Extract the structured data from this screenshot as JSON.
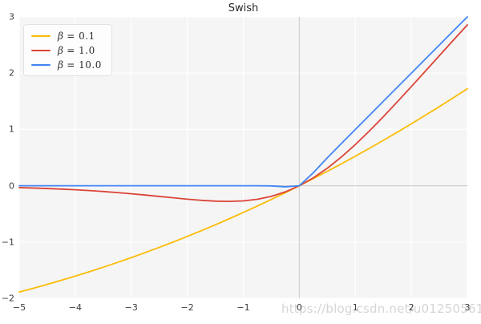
{
  "title": "Swish",
  "watermark": "https://blog.csdn.net/u012505613",
  "colors": {
    "plot_background": "#f5f5f6",
    "grid": "#ffffff",
    "zero_lines": "#cfcfcf",
    "tick_text": "#3d3d3d",
    "title_text": "#262626",
    "watermark_text": "#d5d5d5"
  },
  "chart_data": {
    "type": "line",
    "title": "Swish",
    "xlabel": "",
    "ylabel": "",
    "xlim": [
      -5,
      3
    ],
    "ylim": [
      -2,
      3
    ],
    "xticks": [
      -5,
      -4,
      -3,
      -2,
      -1,
      0,
      1,
      2,
      3
    ],
    "yticks": [
      -2,
      -1,
      0,
      1,
      2,
      3
    ],
    "xtick_labels": [
      "−5",
      "−4",
      "−3",
      "−2",
      "−1",
      "0",
      "1",
      "2",
      "3"
    ],
    "ytick_labels": [
      "−2",
      "−1",
      "0",
      "1",
      "2",
      "3"
    ],
    "grid": true,
    "zero_lines": true,
    "legend_position": "upper left",
    "x": [
      -5,
      -4.75,
      -4.5,
      -4.25,
      -4,
      -3.75,
      -3.5,
      -3.25,
      -3,
      -2.75,
      -2.5,
      -2.25,
      -2,
      -1.75,
      -1.5,
      -1.25,
      -1,
      -0.75,
      -0.5,
      -0.25,
      0,
      0.25,
      0.5,
      0.75,
      1,
      1.25,
      1.5,
      1.75,
      2,
      2.25,
      2.5,
      2.75,
      3
    ],
    "series": [
      {
        "name": "β = 0.1",
        "beta": 0.1,
        "color": "#FBBC05",
        "values": [
          -1.8877,
          -1.8213,
          -1.7521,
          -1.6801,
          -1.6052,
          -1.5275,
          -1.4468,
          -1.3632,
          -1.2767,
          -1.1871,
          -1.0946,
          -0.999,
          -0.9003,
          -0.7986,
          -0.6939,
          -0.586,
          -0.475,
          -0.3609,
          -0.2437,
          -0.1234,
          0,
          0.1266,
          0.2562,
          0.3891,
          0.525,
          0.664,
          0.8061,
          0.9514,
          1.0997,
          1.251,
          1.4054,
          1.5629,
          1.7233
        ]
      },
      {
        "name": "β = 1.0",
        "beta": 1.0,
        "color": "#DB4437",
        "values": [
          -0.0336,
          -0.0408,
          -0.0494,
          -0.0597,
          -0.0719,
          -0.0862,
          -0.1026,
          -0.1213,
          -0.1423,
          -0.1652,
          -0.1897,
          -0.2145,
          -0.2384,
          -0.2591,
          -0.2736,
          -0.2784,
          -0.2689,
          -0.2406,
          -0.1888,
          -0.1095,
          0,
          0.1405,
          0.3112,
          0.5094,
          0.7311,
          0.9716,
          1.2264,
          1.4909,
          1.7616,
          2.0355,
          2.3104,
          2.5848,
          2.8577
        ]
      },
      {
        "name": "β = 10.0",
        "beta": 10.0,
        "color": "#4285F4",
        "values": [
          0,
          0,
          0,
          0,
          0,
          0,
          0,
          0,
          0,
          0,
          0,
          0,
          0,
          0,
          0,
          0,
          0,
          -0.0004,
          -0.0033,
          -0.019,
          0,
          0.231,
          0.4967,
          0.7496,
          1,
          1.25,
          1.5,
          1.75,
          2,
          2.25,
          2.5,
          2.75,
          3
        ]
      }
    ]
  }
}
